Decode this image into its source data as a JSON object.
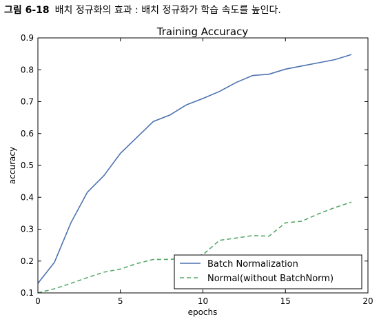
{
  "caption": {
    "figure_number": "그림 6-18",
    "text": "배치 정규화의 효과 : 배치 정규화가 학습 속도를 높인다."
  },
  "chart_data": {
    "type": "line",
    "title": "Training Accuracy",
    "xlabel": "epochs",
    "ylabel": "accuracy",
    "xlim": [
      0,
      20
    ],
    "ylim": [
      0.1,
      0.9
    ],
    "xticks": [
      0,
      5,
      10,
      15,
      20
    ],
    "yticks": [
      0.1,
      0.2,
      0.3,
      0.4,
      0.5,
      0.6,
      0.7,
      0.8,
      0.9
    ],
    "grid": false,
    "legend_position": "lower-right",
    "x": [
      0,
      1,
      2,
      3,
      4,
      5,
      6,
      7,
      8,
      9,
      10,
      11,
      12,
      13,
      14,
      15,
      16,
      17,
      18,
      19
    ],
    "series": [
      {
        "name": "Batch Normalization",
        "color": "#4c72b0",
        "style": "solid",
        "values": [
          0.13,
          0.196,
          0.32,
          0.416,
          0.468,
          0.538,
          0.588,
          0.638,
          0.658,
          0.69,
          0.71,
          0.732,
          0.76,
          0.782,
          0.786,
          0.802,
          0.812,
          0.822,
          0.832,
          0.848
        ]
      },
      {
        "name": "Normal(without BatchNorm)",
        "color": "#55a868",
        "style": "dashed",
        "values": [
          0.1,
          0.113,
          0.13,
          0.148,
          0.165,
          0.175,
          0.192,
          0.205,
          0.205,
          0.21,
          0.22,
          0.265,
          0.272,
          0.28,
          0.278,
          0.32,
          0.325,
          0.348,
          0.368,
          0.385
        ]
      }
    ]
  }
}
